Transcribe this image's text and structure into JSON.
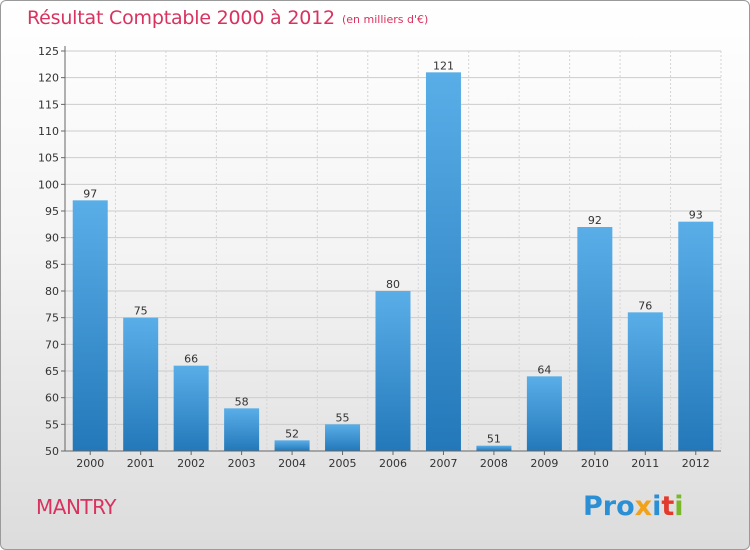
{
  "title": "Résultat Comptable 2000 à 2012",
  "subtitle": "(en milliers d'€)",
  "town": "MANTRY",
  "logo": {
    "p1": "Pro",
    "p2": "x",
    "p3": "i",
    "p4": "t",
    "p5": "i"
  },
  "colors": {
    "title": "#d9325e",
    "bar_light": "#5aaee8",
    "bar_dark": "#2378b9",
    "grid": "#cccccc"
  },
  "chart_data": {
    "type": "bar",
    "title": "Résultat Comptable 2000 à 2012",
    "subtitle": "(en milliers d'€)",
    "xlabel": "",
    "ylabel": "",
    "categories": [
      "2000",
      "2001",
      "2002",
      "2003",
      "2004",
      "2005",
      "2006",
      "2007",
      "2008",
      "2009",
      "2010",
      "2011",
      "2012"
    ],
    "values": [
      97,
      75,
      66,
      58,
      52,
      55,
      80,
      121,
      51,
      64,
      92,
      76,
      93
    ],
    "ylim": [
      50,
      125
    ],
    "yticks": [
      50,
      55,
      60,
      65,
      70,
      75,
      80,
      85,
      90,
      95,
      100,
      105,
      110,
      115,
      120,
      125
    ],
    "grid": true
  }
}
